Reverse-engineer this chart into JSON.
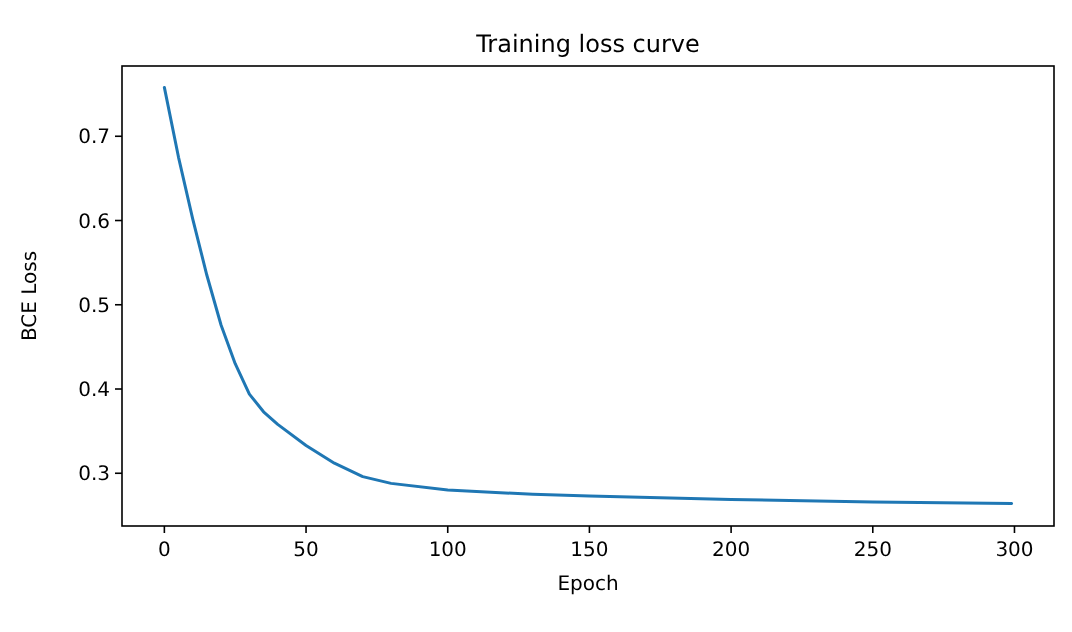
{
  "chart_data": {
    "type": "line",
    "title": "Training loss curve",
    "xlabel": "Epoch",
    "ylabel": "BCE Loss",
    "xlim": [
      -14.95,
      313.95
    ],
    "xticks": [
      0,
      50,
      100,
      150,
      200,
      250,
      300
    ],
    "ylim": [
      0.2374,
      0.7834
    ],
    "yticks": [
      0.3,
      0.4,
      0.5,
      0.6,
      0.7
    ],
    "series": [
      {
        "color": "#1f77b4",
        "x": [
          0,
          5,
          10,
          15,
          20,
          25,
          30,
          35,
          40,
          50,
          60,
          70,
          80,
          100,
          130,
          150,
          200,
          250,
          299
        ],
        "values": [
          0.758,
          0.675,
          0.602,
          0.535,
          0.476,
          0.43,
          0.394,
          0.373,
          0.358,
          0.333,
          0.312,
          0.296,
          0.288,
          0.28,
          0.275,
          0.273,
          0.269,
          0.266,
          0.264
        ]
      }
    ]
  }
}
